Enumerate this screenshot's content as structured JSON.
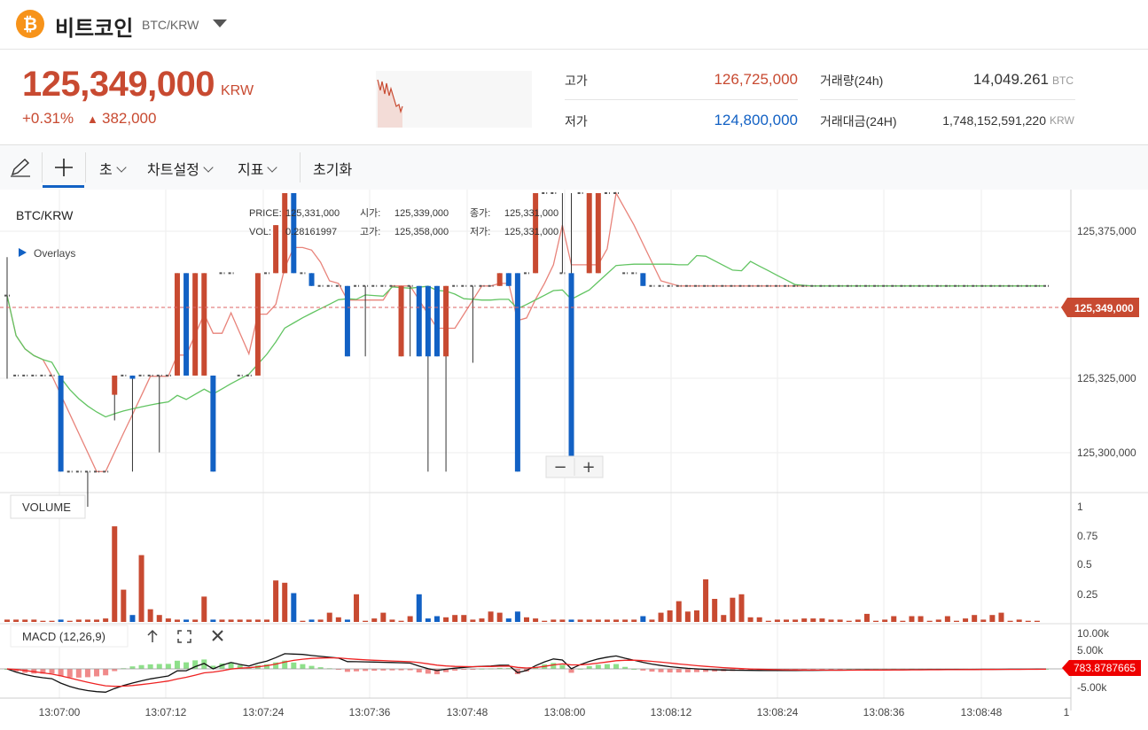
{
  "header": {
    "coin_logo": "₿",
    "coin_name": "비트코인",
    "pair": "BTC/KRW",
    "dropdown_icon": "caret-down-icon"
  },
  "ticker": {
    "price": "125,349,000",
    "unit": "KRW",
    "change_pct": "+0.31%",
    "change_arrow": "▲",
    "change_amount": "382,000"
  },
  "stats": {
    "high_label": "고가",
    "high_value": "126,725,000",
    "low_label": "저가",
    "low_value": "124,800,000",
    "volume_label": "거래량(24h)",
    "volume_value": "14,049.261",
    "volume_unit": "BTC",
    "value_label": "거래대금(24H)",
    "value_value": "1,748,152,591,220",
    "value_unit": "KRW",
    "colors": {
      "up": "#c84a31",
      "down": "#1261c4"
    }
  },
  "toolbar": {
    "draw_icon": "pencil-icon",
    "crosshair_icon": "crosshair-icon",
    "interval": "초",
    "chart_settings": "차트설정",
    "indicators": "지표",
    "reset": "초기화"
  },
  "chart": {
    "symbol_label": "BTC/KRW",
    "overlays_label": "Overlays",
    "info": {
      "price_label": "PRICE:",
      "price": "125,331,000",
      "open_label": "시가:",
      "open": "125,339,000",
      "close_label": "종가:",
      "close": "125,331,000",
      "vol_label": "VOL:",
      "vol": "0.28161997",
      "high_label": "고가:",
      "high": "125,358,000",
      "low_label": "저가:",
      "low": "125,331,000"
    },
    "current_price_label": "125,349,000",
    "zoom_out": "−",
    "zoom_in": "+",
    "volume_label": "VOLUME",
    "macd_label": "MACD (12,26,9)",
    "macd_value_label": "783.8787665",
    "macd_icons": [
      "arrow-up-icon",
      "expand-icon",
      "close-icon"
    ]
  },
  "chart_data": {
    "type": "candlestick",
    "interval": "1s",
    "price_axis": {
      "ticks": [
        "125,375,000",
        "125,325,000",
        "125,300,000"
      ],
      "ylim": [
        125294000,
        125387000
      ]
    },
    "volume_axis": {
      "ticks": [
        "1",
        "0.75",
        "0.5",
        "0.25"
      ],
      "ylim": [
        0,
        1
      ]
    },
    "macd_axis": {
      "ticks": [
        "10.00k",
        "5.00k",
        "-5.00k"
      ]
    },
    "time_axis": {
      "ticks": [
        "13:07:00",
        "13:07:12",
        "13:07:24",
        "13:07:36",
        "13:07:48",
        "13:08:00",
        "13:08:12",
        "13:08:24",
        "13:08:36",
        "13:08:48",
        "1"
      ]
    },
    "candles": [
      {
        "o": 125355000,
        "h": 125367000,
        "l": 125329000,
        "c": 125355000
      },
      {
        "o": 125330000,
        "h": 125330000,
        "l": 125330000,
        "c": 125330000
      },
      {
        "o": 125330000,
        "h": 125330000,
        "l": 125330000,
        "c": 125330000
      },
      {
        "o": 125330000,
        "h": 125330000,
        "l": 125330000,
        "c": 125330000
      },
      {
        "o": 125330000,
        "h": 125330000,
        "l": 125330000,
        "c": 125330000
      },
      {
        "o": 125330000,
        "h": 125330000,
        "l": 125330000,
        "c": 125330000
      },
      {
        "o": 125330000,
        "h": 125330000,
        "l": 125300000,
        "c": 125300000
      },
      {
        "o": 125300000,
        "h": 125300000,
        "l": 125300000,
        "c": 125300000
      },
      {
        "o": 125300000,
        "h": 125300000,
        "l": 125300000,
        "c": 125300000
      },
      {
        "o": 125300000,
        "h": 125300000,
        "l": 125289000,
        "c": 125300000
      },
      {
        "o": 125300000,
        "h": 125300000,
        "l": 125300000,
        "c": 125300000
      },
      {
        "o": 125300000,
        "h": 125300000,
        "l": 125300000,
        "c": 125300000
      },
      {
        "o": 125324000,
        "h": 125330000,
        "l": 125316000,
        "c": 125330000
      },
      {
        "o": 125330000,
        "h": 125330000,
        "l": 125330000,
        "c": 125330000
      },
      {
        "o": 125330000,
        "h": 125330000,
        "l": 125300000,
        "c": 125329000
      },
      {
        "o": 125330000,
        "h": 125330000,
        "l": 125330000,
        "c": 125330000
      },
      {
        "o": 125330000,
        "h": 125330000,
        "l": 125330000,
        "c": 125330000
      },
      {
        "o": 125330000,
        "h": 125330000,
        "l": 125306000,
        "c": 125330000
      },
      {
        "o": 125330000,
        "h": 125330000,
        "l": 125330000,
        "c": 125330000
      },
      {
        "o": 125330000,
        "h": 125362000,
        "l": 125330000,
        "c": 125362000
      },
      {
        "o": 125362000,
        "h": 125362000,
        "l": 125330000,
        "c": 125330000
      },
      {
        "o": 125330000,
        "h": 125362000,
        "l": 125330000,
        "c": 125362000
      },
      {
        "o": 125330000,
        "h": 125362000,
        "l": 125330000,
        "c": 125362000
      },
      {
        "o": 125330000,
        "h": 125330000,
        "l": 125300000,
        "c": 125300000
      },
      {
        "o": 125362000,
        "h": 125362000,
        "l": 125362000,
        "c": 125362000
      },
      {
        "o": 125362000,
        "h": 125362000,
        "l": 125362000,
        "c": 125362000
      },
      {
        "o": 125330000,
        "h": 125330000,
        "l": 125330000,
        "c": 125330000
      },
      {
        "o": 125330000,
        "h": 125330000,
        "l": 125330000,
        "c": 125330000
      },
      {
        "o": 125330000,
        "h": 125362000,
        "l": 125330000,
        "c": 125362000
      },
      {
        "o": 125362000,
        "h": 125362000,
        "l": 125362000,
        "c": 125362000
      },
      {
        "o": 125362000,
        "h": 125377000,
        "l": 125362000,
        "c": 125377000
      },
      {
        "o": 125362000,
        "h": 125387000,
        "l": 125362000,
        "c": 125387000
      },
      {
        "o": 125387000,
        "h": 125387000,
        "l": 125362000,
        "c": 125362000
      },
      {
        "o": 125362000,
        "h": 125362000,
        "l": 125362000,
        "c": 125362000
      },
      {
        "o": 125362000,
        "h": 125362000,
        "l": 125358000,
        "c": 125358000
      },
      {
        "o": 125358000,
        "h": 125358000,
        "l": 125358000,
        "c": 125358000
      },
      {
        "o": 125358000,
        "h": 125358000,
        "l": 125358000,
        "c": 125358000
      },
      {
        "o": 125358000,
        "h": 125358000,
        "l": 125358000,
        "c": 125358000
      },
      {
        "o": 125358000,
        "h": 125358000,
        "l": 125336000,
        "c": 125336000
      },
      {
        "o": 125358000,
        "h": 125358000,
        "l": 125358000,
        "c": 125358000
      },
      {
        "o": 125358000,
        "h": 125358000,
        "l": 125336000,
        "c": 125358000
      },
      {
        "o": 125358000,
        "h": 125358000,
        "l": 125358000,
        "c": 125358000
      },
      {
        "o": 125358000,
        "h": 125358000,
        "l": 125358000,
        "c": 125358000
      },
      {
        "o": 125358000,
        "h": 125358000,
        "l": 125358000,
        "c": 125358000
      },
      {
        "o": 125336000,
        "h": 125358000,
        "l": 125336000,
        "c": 125358000
      },
      {
        "o": 125358000,
        "h": 125358000,
        "l": 125336000,
        "c": 125358000
      },
      {
        "o": 125358000,
        "h": 125358000,
        "l": 125336000,
        "c": 125336000
      },
      {
        "o": 125358000,
        "h": 125358000,
        "l": 125300000,
        "c": 125336000
      },
      {
        "o": 125358000,
        "h": 125358000,
        "l": 125336000,
        "c": 125336000
      },
      {
        "o": 125336000,
        "h": 125358000,
        "l": 125300000,
        "c": 125358000
      },
      {
        "o": 125358000,
        "h": 125358000,
        "l": 125358000,
        "c": 125358000
      },
      {
        "o": 125358000,
        "h": 125358000,
        "l": 125358000,
        "c": 125358000
      },
      {
        "o": 125358000,
        "h": 125358000,
        "l": 125334000,
        "c": 125358000
      },
      {
        "o": 125358000,
        "h": 125358000,
        "l": 125358000,
        "c": 125358000
      },
      {
        "o": 125358000,
        "h": 125358000,
        "l": 125358000,
        "c": 125358000
      },
      {
        "o": 125358000,
        "h": 125362000,
        "l": 125358000,
        "c": 125362000
      },
      {
        "o": 125362000,
        "h": 125362000,
        "l": 125358000,
        "c": 125358000
      },
      {
        "o": 125362000,
        "h": 125362000,
        "l": 125300000,
        "c": 125300000
      },
      {
        "o": 125362000,
        "h": 125362000,
        "l": 125362000,
        "c": 125362000
      },
      {
        "o": 125362000,
        "h": 125387000,
        "l": 125362000,
        "c": 125387000
      },
      {
        "o": 125387000,
        "h": 125387000,
        "l": 125387000,
        "c": 125387000
      },
      {
        "o": 125387000,
        "h": 125387000,
        "l": 125387000,
        "c": 125387000
      },
      {
        "o": 125362000,
        "h": 125387000,
        "l": 125362000,
        "c": 125362000
      },
      {
        "o": 125362000,
        "h": 125387000,
        "l": 125300000,
        "c": 125300000
      },
      {
        "o": 125387000,
        "h": 125387000,
        "l": 125387000,
        "c": 125387000
      },
      {
        "o": 125362000,
        "h": 125387000,
        "l": 125362000,
        "c": 125387000
      },
      {
        "o": 125362000,
        "h": 125387000,
        "l": 125362000,
        "c": 125387000
      },
      {
        "o": 125387000,
        "h": 125387000,
        "l": 125387000,
        "c": 125387000
      },
      {
        "o": 125387000,
        "h": 125387000,
        "l": 125387000,
        "c": 125387000
      },
      {
        "o": 125362000,
        "h": 125362000,
        "l": 125362000,
        "c": 125362000
      },
      {
        "o": 125362000,
        "h": 125362000,
        "l": 125362000,
        "c": 125362000
      },
      {
        "o": 125362000,
        "h": 125362000,
        "l": 125358000,
        "c": 125358000
      },
      {
        "o": 125358000,
        "h": 125358000,
        "l": 125358000,
        "c": 125358000
      },
      {
        "o": 125358000,
        "h": 125358000,
        "l": 125358000,
        "c": 125358000
      },
      {
        "o": 125358000,
        "h": 125358000,
        "l": 125358000,
        "c": 125358000
      },
      {
        "o": 125358000,
        "h": 125358000,
        "l": 125358000,
        "c": 125358000
      },
      {
        "o": 125358000,
        "h": 125358000,
        "l": 125358000,
        "c": 125358000
      },
      {
        "o": 125358000,
        "h": 125358000,
        "l": 125358000,
        "c": 125358000
      },
      {
        "o": 125358000,
        "h": 125358000,
        "l": 125358000,
        "c": 125358000
      },
      {
        "o": 125358000,
        "h": 125358000,
        "l": 125358000,
        "c": 125358000
      },
      {
        "o": 125358000,
        "h": 125358000,
        "l": 125358000,
        "c": 125358000
      },
      {
        "o": 125358000,
        "h": 125358000,
        "l": 125358000,
        "c": 125358000
      },
      {
        "o": 125358000,
        "h": 125358000,
        "l": 125358000,
        "c": 125358000
      },
      {
        "o": 125358000,
        "h": 125358000,
        "l": 125358000,
        "c": 125358000
      },
      {
        "o": 125358000,
        "h": 125358000,
        "l": 125358000,
        "c": 125358000
      },
      {
        "o": 125358000,
        "h": 125358000,
        "l": 125358000,
        "c": 125358000
      },
      {
        "o": 125358000,
        "h": 125358000,
        "l": 125358000,
        "c": 125358000
      },
      {
        "o": 125358000,
        "h": 125358000,
        "l": 125358000,
        "c": 125358000
      },
      {
        "o": 125358000,
        "h": 125358000,
        "l": 125358000,
        "c": 125358000
      },
      {
        "o": 125358000,
        "h": 125358000,
        "l": 125358000,
        "c": 125358000
      },
      {
        "o": 125358000,
        "h": 125358000,
        "l": 125358000,
        "c": 125358000
      },
      {
        "o": 125358000,
        "h": 125358000,
        "l": 125358000,
        "c": 125358000
      },
      {
        "o": 125358000,
        "h": 125358000,
        "l": 125358000,
        "c": 125358000
      },
      {
        "o": 125358000,
        "h": 125358000,
        "l": 125358000,
        "c": 125358000
      },
      {
        "o": 125358000,
        "h": 125358000,
        "l": 125358000,
        "c": 125358000
      },
      {
        "o": 125358000,
        "h": 125358000,
        "l": 125358000,
        "c": 125358000
      },
      {
        "o": 125358000,
        "h": 125358000,
        "l": 125358000,
        "c": 125358000
      },
      {
        "o": 125358000,
        "h": 125358000,
        "l": 125358000,
        "c": 125358000
      },
      {
        "o": 125358000,
        "h": 125358000,
        "l": 125358000,
        "c": 125358000
      },
      {
        "o": 125358000,
        "h": 125358000,
        "l": 125358000,
        "c": 125358000
      },
      {
        "o": 125358000,
        "h": 125358000,
        "l": 125358000,
        "c": 125358000
      },
      {
        "o": 125358000,
        "h": 125358000,
        "l": 125358000,
        "c": 125358000
      },
      {
        "o": 125358000,
        "h": 125358000,
        "l": 125358000,
        "c": 125358000
      },
      {
        "o": 125358000,
        "h": 125358000,
        "l": 125358000,
        "c": 125358000
      },
      {
        "o": 125358000,
        "h": 125358000,
        "l": 125358000,
        "c": 125358000
      },
      {
        "o": 125358000,
        "h": 125358000,
        "l": 125358000,
        "c": 125358000
      },
      {
        "o": 125358000,
        "h": 125358000,
        "l": 125358000,
        "c": 125358000
      },
      {
        "o": 125358000,
        "h": 125358000,
        "l": 125358000,
        "c": 125358000
      },
      {
        "o": 125358000,
        "h": 125358000,
        "l": 125358000,
        "c": 125358000
      },
      {
        "o": 125358000,
        "h": 125358000,
        "l": 125358000,
        "c": 125358000
      },
      {
        "o": 125358000,
        "h": 125358000,
        "l": 125358000,
        "c": 125358000
      },
      {
        "o": 125358000,
        "h": 125358000,
        "l": 125358000,
        "c": 125358000
      },
      {
        "o": 125358000,
        "h": 125358000,
        "l": 125358000,
        "c": 125358000
      },
      {
        "o": 125358000,
        "h": 125358000,
        "l": 125358000,
        "c": 125358000
      },
      {
        "o": 125358000,
        "h": 125358000,
        "l": 125358000,
        "c": 125358000
      },
      {
        "o": 125358000,
        "h": 125358000,
        "l": 125358000,
        "c": 125358000
      },
      {
        "o": 125358000,
        "h": 125358000,
        "l": 125358000,
        "c": 125358000
      }
    ],
    "volume": [
      0.02,
      0.02,
      0.02,
      0.02,
      0.01,
      0.01,
      0.02,
      0.01,
      0.02,
      0.02,
      0.02,
      0.03,
      0.83,
      0.28,
      0.06,
      0.58,
      0.11,
      0.06,
      0.03,
      0.02,
      0.02,
      0.02,
      0.22,
      0.02,
      0.02,
      0.02,
      0.02,
      0.02,
      0.02,
      0.02,
      0.36,
      0.34,
      0.25,
      0.01,
      0.02,
      0.02,
      0.08,
      0.04,
      0.02,
      0.24,
      0.01,
      0.03,
      0.08,
      0.02,
      0.01,
      0.05,
      0.24,
      0.03,
      0.05,
      0.04,
      0.06,
      0.06,
      0.02,
      0.03,
      0.09,
      0.08,
      0.03,
      0.09,
      0.04,
      0.03,
      0.01,
      0.02,
      0.02,
      0.02,
      0.02,
      0.02,
      0.02,
      0.02,
      0.02,
      0.02,
      0.02,
      0.05,
      0.02,
      0.08,
      0.1,
      0.18,
      0.09,
      0.1,
      0.37,
      0.2,
      0.06,
      0.21,
      0.24,
      0.04,
      0.04,
      0.01,
      0.02,
      0.02,
      0.02,
      0.03,
      0.03,
      0.03,
      0.02,
      0.02,
      0.01,
      0.02,
      0.07,
      0.01,
      0.02,
      0.05,
      0.01,
      0.05,
      0.05,
      0.01,
      0.02,
      0.05,
      0.01,
      0.03,
      0.06,
      0.02,
      0.06,
      0.08,
      0.01,
      0.02,
      0.01,
      0.01
    ],
    "macd": {
      "value": 783.8787665
    }
  }
}
